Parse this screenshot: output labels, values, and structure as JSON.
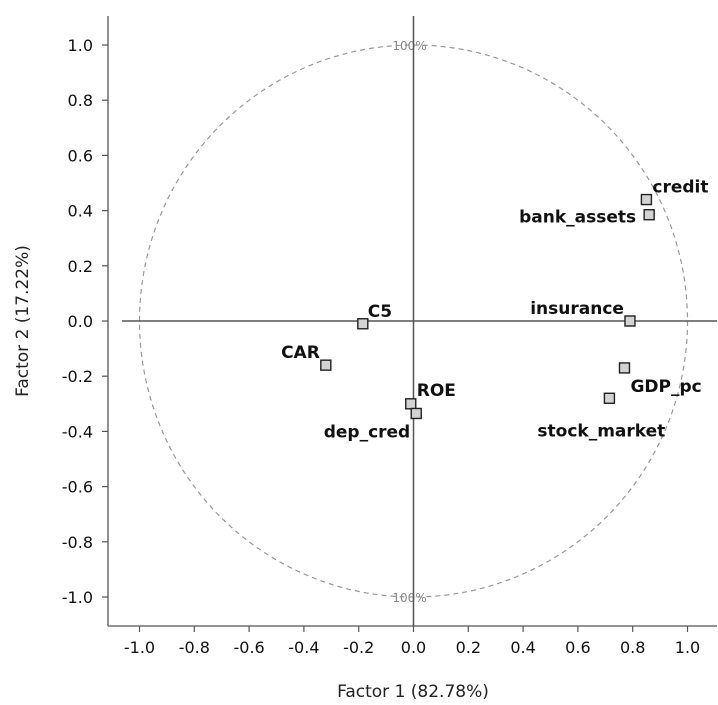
{
  "chart_data": {
    "type": "scatter",
    "title": "",
    "xlabel": "Factor 1 (82.78%)",
    "ylabel": "Factor 2 (17.22%)",
    "xlim": [
      -1.1,
      1.1
    ],
    "ylim": [
      -1.11,
      1.1
    ],
    "xticks": [
      -1.0,
      -0.8,
      -0.6,
      -0.4,
      -0.2,
      0.0,
      0.2,
      0.4,
      0.6,
      0.8,
      1.0
    ],
    "yticks": [
      -1.0,
      -0.8,
      -0.6,
      -0.4,
      -0.2,
      0.0,
      0.2,
      0.4,
      0.6,
      0.8,
      1.0
    ],
    "xtick_labels": [
      "-1.0",
      "-0.8",
      "-0.6",
      "-0.4",
      "-0.2",
      "0.0",
      "0.2",
      "0.4",
      "0.6",
      "0.8",
      "1.0"
    ],
    "ytick_labels": [
      "-1.0",
      "-0.8",
      "-0.6",
      "-0.4",
      "-0.2",
      "0.0",
      "0.2",
      "0.4",
      "0.6",
      "0.8",
      "1.0"
    ],
    "grid": false,
    "reference_circle": {
      "radius": 1.0,
      "labels": [
        "100%",
        "100%"
      ]
    },
    "points": [
      {
        "label": "credit",
        "x": 0.85,
        "y": 0.44
      },
      {
        "label": "bank_assets",
        "x": 0.86,
        "y": 0.385
      },
      {
        "label": "insurance",
        "x": 0.79,
        "y": 0.0
      },
      {
        "label": "GDP_pc",
        "x": 0.77,
        "y": -0.17
      },
      {
        "label": "stock_market",
        "x": 0.715,
        "y": -0.28
      },
      {
        "label": "C5",
        "x": -0.185,
        "y": -0.01
      },
      {
        "label": "CAR",
        "x": -0.32,
        "y": -0.16
      },
      {
        "label": "ROE",
        "x": -0.01,
        "y": -0.3
      },
      {
        "label": "dep_cred",
        "x": 0.01,
        "y": -0.335
      }
    ],
    "marker": {
      "shape": "square",
      "fill": "#d3d3d3",
      "stroke": "#222222"
    },
    "colors": {
      "axis": "#555555",
      "circle": "#999999"
    }
  }
}
